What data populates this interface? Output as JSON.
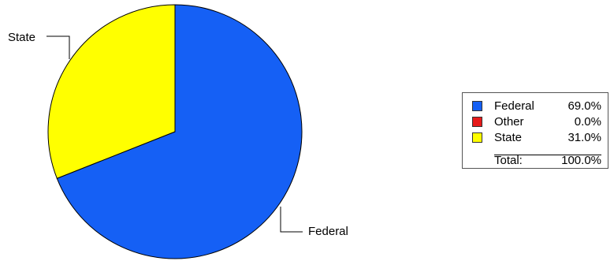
{
  "chart_data": {
    "type": "pie",
    "slices": [
      {
        "label": "Federal",
        "value": 69.0,
        "color": "#1560F5",
        "display": "69.0%"
      },
      {
        "label": "Other",
        "value": 0.0,
        "color": "#E61A1A",
        "display": "0.0%"
      },
      {
        "label": "State",
        "value": 31.0,
        "color": "#FFFF00",
        "display": "31.0%"
      }
    ],
    "total_label": "Total:",
    "total_value": "100.0%",
    "legend_placement": "right"
  }
}
